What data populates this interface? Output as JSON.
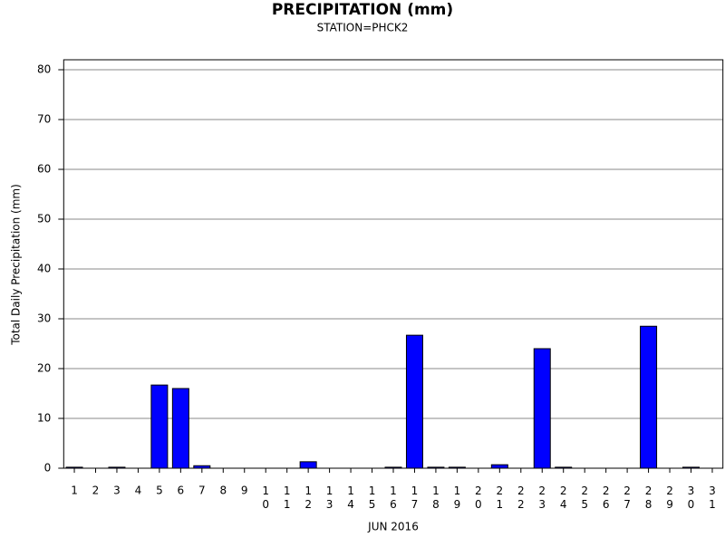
{
  "chart_data": {
    "type": "bar",
    "title": "PRECIPITATION (mm)",
    "subtitle": "STATION=PHCK2",
    "x_label": "JUN 2016",
    "y_label": "Total Daily Precipitation (mm)",
    "categories": [
      "1",
      "2",
      "3",
      "4",
      "5",
      "6",
      "7",
      "8",
      "9",
      "10",
      "11",
      "12",
      "13",
      "14",
      "15",
      "16",
      "17",
      "18",
      "19",
      "20",
      "21",
      "22",
      "23",
      "24",
      "25",
      "26",
      "27",
      "28",
      "29",
      "30",
      "31"
    ],
    "values": [
      0.2,
      0,
      0.2,
      0,
      16.7,
      16,
      0.5,
      0,
      0,
      0,
      0,
      1.3,
      0,
      0,
      0,
      0.2,
      26.7,
      0.2,
      0.2,
      0,
      0.7,
      0,
      24,
      0.2,
      0,
      0,
      0,
      28.5,
      0,
      0.2,
      0
    ],
    "color": "#0000ff",
    "ylim": [
      0,
      82
    ],
    "yticks": [
      0,
      10,
      20,
      30,
      40,
      50,
      60,
      70,
      80
    ],
    "grid": true
  }
}
